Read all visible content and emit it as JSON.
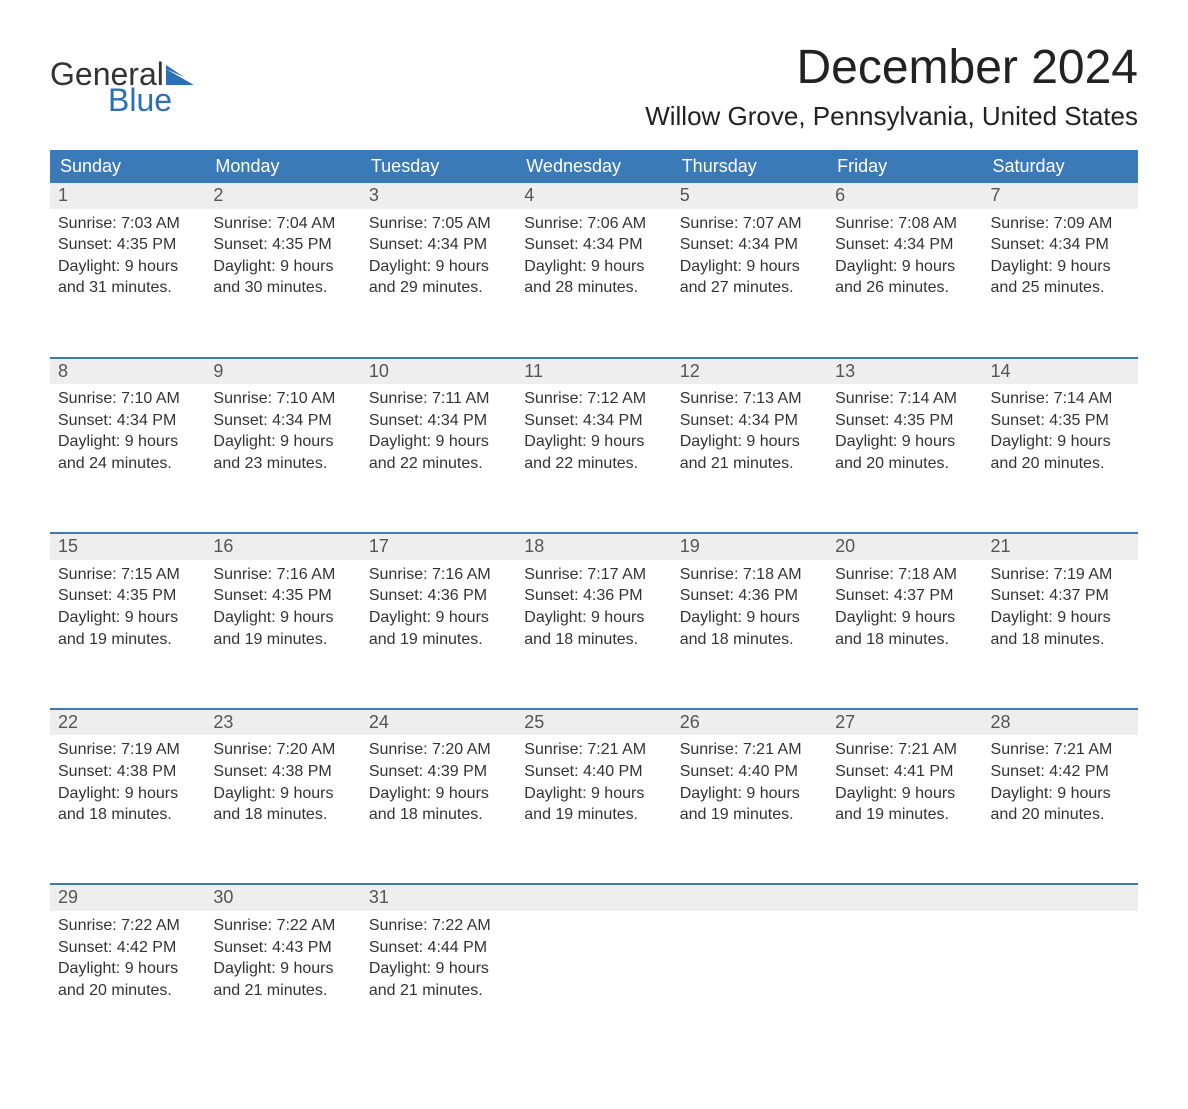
{
  "branding": {
    "logo_text_1": "General",
    "logo_text_2": "Blue",
    "logo_color_1": "#333333",
    "logo_color_2": "#2b6fb5",
    "flag_color": "#2b6fb5"
  },
  "title": {
    "month": "December 2024",
    "location": "Willow Grove, Pennsylvania, United States"
  },
  "style": {
    "header_bg": "#3a7ab8",
    "header_fg": "#ffffff",
    "daynum_bg": "#eeeeee",
    "week_sep_color": "#3a7ab8",
    "body_text_color": "#333333",
    "page_bg": "#ffffff",
    "th_fontsize": 18,
    "daynum_fontsize": 18,
    "detail_fontsize": 16,
    "title_fontsize": 48,
    "location_fontsize": 26
  },
  "weekdays": [
    "Sunday",
    "Monday",
    "Tuesday",
    "Wednesday",
    "Thursday",
    "Friday",
    "Saturday"
  ],
  "weeks": [
    {
      "days": [
        {
          "num": "1",
          "sunrise": "Sunrise: 7:03 AM",
          "sunset": "Sunset: 4:35 PM",
          "daylight1": "Daylight: 9 hours",
          "daylight2": "and 31 minutes."
        },
        {
          "num": "2",
          "sunrise": "Sunrise: 7:04 AM",
          "sunset": "Sunset: 4:35 PM",
          "daylight1": "Daylight: 9 hours",
          "daylight2": "and 30 minutes."
        },
        {
          "num": "3",
          "sunrise": "Sunrise: 7:05 AM",
          "sunset": "Sunset: 4:34 PM",
          "daylight1": "Daylight: 9 hours",
          "daylight2": "and 29 minutes."
        },
        {
          "num": "4",
          "sunrise": "Sunrise: 7:06 AM",
          "sunset": "Sunset: 4:34 PM",
          "daylight1": "Daylight: 9 hours",
          "daylight2": "and 28 minutes."
        },
        {
          "num": "5",
          "sunrise": "Sunrise: 7:07 AM",
          "sunset": "Sunset: 4:34 PM",
          "daylight1": "Daylight: 9 hours",
          "daylight2": "and 27 minutes."
        },
        {
          "num": "6",
          "sunrise": "Sunrise: 7:08 AM",
          "sunset": "Sunset: 4:34 PM",
          "daylight1": "Daylight: 9 hours",
          "daylight2": "and 26 minutes."
        },
        {
          "num": "7",
          "sunrise": "Sunrise: 7:09 AM",
          "sunset": "Sunset: 4:34 PM",
          "daylight1": "Daylight: 9 hours",
          "daylight2": "and 25 minutes."
        }
      ]
    },
    {
      "days": [
        {
          "num": "8",
          "sunrise": "Sunrise: 7:10 AM",
          "sunset": "Sunset: 4:34 PM",
          "daylight1": "Daylight: 9 hours",
          "daylight2": "and 24 minutes."
        },
        {
          "num": "9",
          "sunrise": "Sunrise: 7:10 AM",
          "sunset": "Sunset: 4:34 PM",
          "daylight1": "Daylight: 9 hours",
          "daylight2": "and 23 minutes."
        },
        {
          "num": "10",
          "sunrise": "Sunrise: 7:11 AM",
          "sunset": "Sunset: 4:34 PM",
          "daylight1": "Daylight: 9 hours",
          "daylight2": "and 22 minutes."
        },
        {
          "num": "11",
          "sunrise": "Sunrise: 7:12 AM",
          "sunset": "Sunset: 4:34 PM",
          "daylight1": "Daylight: 9 hours",
          "daylight2": "and 22 minutes."
        },
        {
          "num": "12",
          "sunrise": "Sunrise: 7:13 AM",
          "sunset": "Sunset: 4:34 PM",
          "daylight1": "Daylight: 9 hours",
          "daylight2": "and 21 minutes."
        },
        {
          "num": "13",
          "sunrise": "Sunrise: 7:14 AM",
          "sunset": "Sunset: 4:35 PM",
          "daylight1": "Daylight: 9 hours",
          "daylight2": "and 20 minutes."
        },
        {
          "num": "14",
          "sunrise": "Sunrise: 7:14 AM",
          "sunset": "Sunset: 4:35 PM",
          "daylight1": "Daylight: 9 hours",
          "daylight2": "and 20 minutes."
        }
      ]
    },
    {
      "days": [
        {
          "num": "15",
          "sunrise": "Sunrise: 7:15 AM",
          "sunset": "Sunset: 4:35 PM",
          "daylight1": "Daylight: 9 hours",
          "daylight2": "and 19 minutes."
        },
        {
          "num": "16",
          "sunrise": "Sunrise: 7:16 AM",
          "sunset": "Sunset: 4:35 PM",
          "daylight1": "Daylight: 9 hours",
          "daylight2": "and 19 minutes."
        },
        {
          "num": "17",
          "sunrise": "Sunrise: 7:16 AM",
          "sunset": "Sunset: 4:36 PM",
          "daylight1": "Daylight: 9 hours",
          "daylight2": "and 19 minutes."
        },
        {
          "num": "18",
          "sunrise": "Sunrise: 7:17 AM",
          "sunset": "Sunset: 4:36 PM",
          "daylight1": "Daylight: 9 hours",
          "daylight2": "and 18 minutes."
        },
        {
          "num": "19",
          "sunrise": "Sunrise: 7:18 AM",
          "sunset": "Sunset: 4:36 PM",
          "daylight1": "Daylight: 9 hours",
          "daylight2": "and 18 minutes."
        },
        {
          "num": "20",
          "sunrise": "Sunrise: 7:18 AM",
          "sunset": "Sunset: 4:37 PM",
          "daylight1": "Daylight: 9 hours",
          "daylight2": "and 18 minutes."
        },
        {
          "num": "21",
          "sunrise": "Sunrise: 7:19 AM",
          "sunset": "Sunset: 4:37 PM",
          "daylight1": "Daylight: 9 hours",
          "daylight2": "and 18 minutes."
        }
      ]
    },
    {
      "days": [
        {
          "num": "22",
          "sunrise": "Sunrise: 7:19 AM",
          "sunset": "Sunset: 4:38 PM",
          "daylight1": "Daylight: 9 hours",
          "daylight2": "and 18 minutes."
        },
        {
          "num": "23",
          "sunrise": "Sunrise: 7:20 AM",
          "sunset": "Sunset: 4:38 PM",
          "daylight1": "Daylight: 9 hours",
          "daylight2": "and 18 minutes."
        },
        {
          "num": "24",
          "sunrise": "Sunrise: 7:20 AM",
          "sunset": "Sunset: 4:39 PM",
          "daylight1": "Daylight: 9 hours",
          "daylight2": "and 18 minutes."
        },
        {
          "num": "25",
          "sunrise": "Sunrise: 7:21 AM",
          "sunset": "Sunset: 4:40 PM",
          "daylight1": "Daylight: 9 hours",
          "daylight2": "and 19 minutes."
        },
        {
          "num": "26",
          "sunrise": "Sunrise: 7:21 AM",
          "sunset": "Sunset: 4:40 PM",
          "daylight1": "Daylight: 9 hours",
          "daylight2": "and 19 minutes."
        },
        {
          "num": "27",
          "sunrise": "Sunrise: 7:21 AM",
          "sunset": "Sunset: 4:41 PM",
          "daylight1": "Daylight: 9 hours",
          "daylight2": "and 19 minutes."
        },
        {
          "num": "28",
          "sunrise": "Sunrise: 7:21 AM",
          "sunset": "Sunset: 4:42 PM",
          "daylight1": "Daylight: 9 hours",
          "daylight2": "and 20 minutes."
        }
      ]
    },
    {
      "days": [
        {
          "num": "29",
          "sunrise": "Sunrise: 7:22 AM",
          "sunset": "Sunset: 4:42 PM",
          "daylight1": "Daylight: 9 hours",
          "daylight2": "and 20 minutes."
        },
        {
          "num": "30",
          "sunrise": "Sunrise: 7:22 AM",
          "sunset": "Sunset: 4:43 PM",
          "daylight1": "Daylight: 9 hours",
          "daylight2": "and 21 minutes."
        },
        {
          "num": "31",
          "sunrise": "Sunrise: 7:22 AM",
          "sunset": "Sunset: 4:44 PM",
          "daylight1": "Daylight: 9 hours",
          "daylight2": "and 21 minutes."
        },
        {
          "num": "",
          "sunrise": "",
          "sunset": "",
          "daylight1": "",
          "daylight2": ""
        },
        {
          "num": "",
          "sunrise": "",
          "sunset": "",
          "daylight1": "",
          "daylight2": ""
        },
        {
          "num": "",
          "sunrise": "",
          "sunset": "",
          "daylight1": "",
          "daylight2": ""
        },
        {
          "num": "",
          "sunrise": "",
          "sunset": "",
          "daylight1": "",
          "daylight2": ""
        }
      ]
    }
  ]
}
